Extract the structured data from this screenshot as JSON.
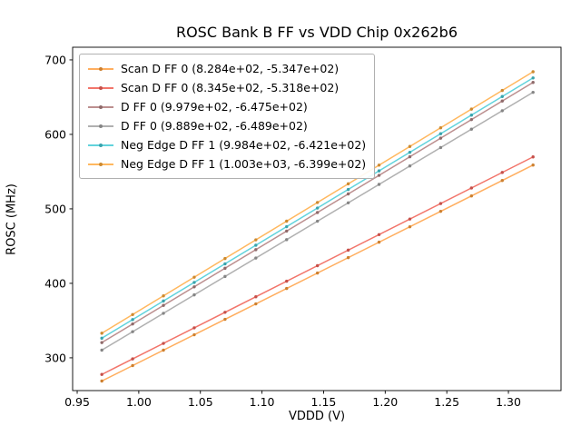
{
  "figure": {
    "title": "ROSC Bank B FF vs VDD Chip 0x262b6",
    "xlabel": "VDDD (V)",
    "ylabel": "ROSC (MHz)"
  },
  "chart_data": {
    "type": "line",
    "title": "ROSC Bank B FF vs VDD Chip 0x262b6",
    "xlabel": "VDDD (V)",
    "ylabel": "ROSC (MHz)",
    "grid": false,
    "legend_position": "upper left",
    "xlim": [
      0.9463,
      1.3427
    ],
    "ylim": [
      256,
      717
    ],
    "xticks": [
      0.95,
      1.0,
      1.05,
      1.1,
      1.15,
      1.2,
      1.25,
      1.3
    ],
    "xtick_labels": [
      "0.95",
      "1.00",
      "1.05",
      "1.10",
      "1.15",
      "1.20",
      "1.25",
      "1.30"
    ],
    "yticks": [
      300,
      400,
      500,
      600,
      700
    ],
    "ytick_labels": [
      "300",
      "400",
      "500",
      "600",
      "700"
    ],
    "x_values": [
      0.97,
      0.995,
      1.02,
      1.045,
      1.07,
      1.095,
      1.12,
      1.145,
      1.17,
      1.195,
      1.22,
      1.245,
      1.27,
      1.295,
      1.32
    ],
    "fit_model": "y = slope * x + intercept",
    "series": [
      {
        "name": "Scan D FF 0 (8.284e+02, -5.347e+02)",
        "slope": 828.4,
        "intercept": -534.7,
        "color": "#ffae5f",
        "marker_color": "#cc8030"
      },
      {
        "name": "Scan D FF 0 (8.345e+02, -5.318e+02)",
        "slope": 834.5,
        "intercept": -531.8,
        "color": "#f2756b",
        "marker_color": "#c5504a"
      },
      {
        "name": "D FF 0 (9.979e+02, -6.475e+02)",
        "slope": 997.9,
        "intercept": -647.5,
        "color": "#bc8f8f",
        "marker_color": "#8f6a6a"
      },
      {
        "name": "D FF 0 (9.889e+02, -6.489e+02)",
        "slope": 988.9,
        "intercept": -648.9,
        "color": "#b0b0b0",
        "marker_color": "#858585"
      },
      {
        "name": "Neg Edge D FF 1 (9.984e+02, -6.421e+02)",
        "slope": 998.4,
        "intercept": -642.1,
        "color": "#62d3dc",
        "marker_color": "#3aa3ac"
      },
      {
        "name": "Neg Edge D FF 1 (1.003e+03, -6.399e+02)",
        "slope": 1003.0,
        "intercept": -639.9,
        "color": "#ffb85f",
        "marker_color": "#cc8a30"
      }
    ]
  }
}
